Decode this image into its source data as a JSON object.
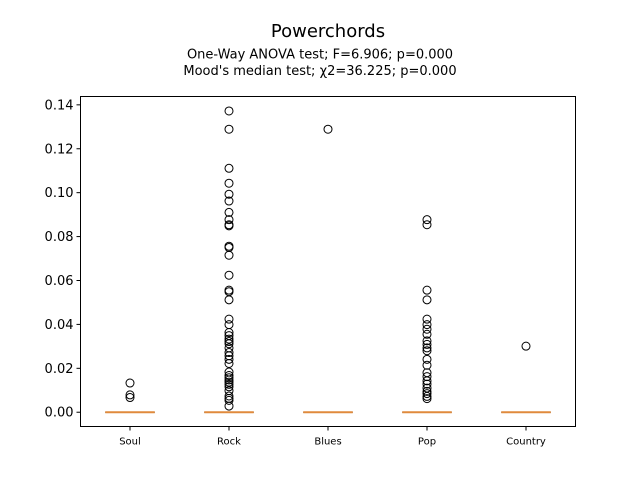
{
  "chart_data": {
    "type": "box",
    "title": "Powerchords",
    "subtitle_lines": [
      "One-Way ANOVA test; F=6.906; p=0.000",
      "Mood's median test; χ2=36.225; p=0.000"
    ],
    "xlabel": "",
    "ylabel": "",
    "ylim": [
      -0.0065,
      0.1438
    ],
    "yticks": [
      0.0,
      0.02,
      0.04,
      0.06,
      0.08,
      0.1,
      0.12,
      0.14
    ],
    "ytick_labels": [
      "0.00",
      "0.02",
      "0.04",
      "0.06",
      "0.08",
      "0.10",
      "0.12",
      "0.14"
    ],
    "grid": false,
    "categories": [
      "Soul",
      "Rock",
      "Blues",
      "Pop",
      "Country"
    ],
    "medians": [
      0,
      0,
      0,
      0,
      0
    ],
    "outliers": [
      [
        0.0133,
        0.0079,
        0.0067
      ],
      [
        0.1372,
        0.1289,
        0.1111,
        0.1043,
        0.0993,
        0.0962,
        0.091,
        0.0877,
        0.0854,
        0.0849,
        0.0756,
        0.075,
        0.0715,
        0.0624,
        0.0556,
        0.0549,
        0.0512,
        0.0424,
        0.0399,
        0.0363,
        0.0349,
        0.0333,
        0.0322,
        0.0312,
        0.0293,
        0.0272,
        0.0257,
        0.0241,
        0.0222,
        0.0183,
        0.0167,
        0.0157,
        0.0147,
        0.0137,
        0.0127,
        0.0116,
        0.0098,
        0.0074,
        0.0063,
        0.0054,
        0.0028
      ],
      [
        0.1289
      ],
      [
        0.0877,
        0.0854,
        0.0556,
        0.0512,
        0.0424,
        0.0399,
        0.0378,
        0.0355,
        0.0325,
        0.0309,
        0.0293,
        0.028,
        0.0241,
        0.0214,
        0.018,
        0.0162,
        0.0143,
        0.0128,
        0.011,
        0.0095,
        0.0085,
        0.0072,
        0.0062
      ],
      [
        0.0301
      ]
    ],
    "colors": {
      "median": "#e08a3c",
      "outlier_edge": "#000000",
      "axes": "#000000"
    }
  }
}
